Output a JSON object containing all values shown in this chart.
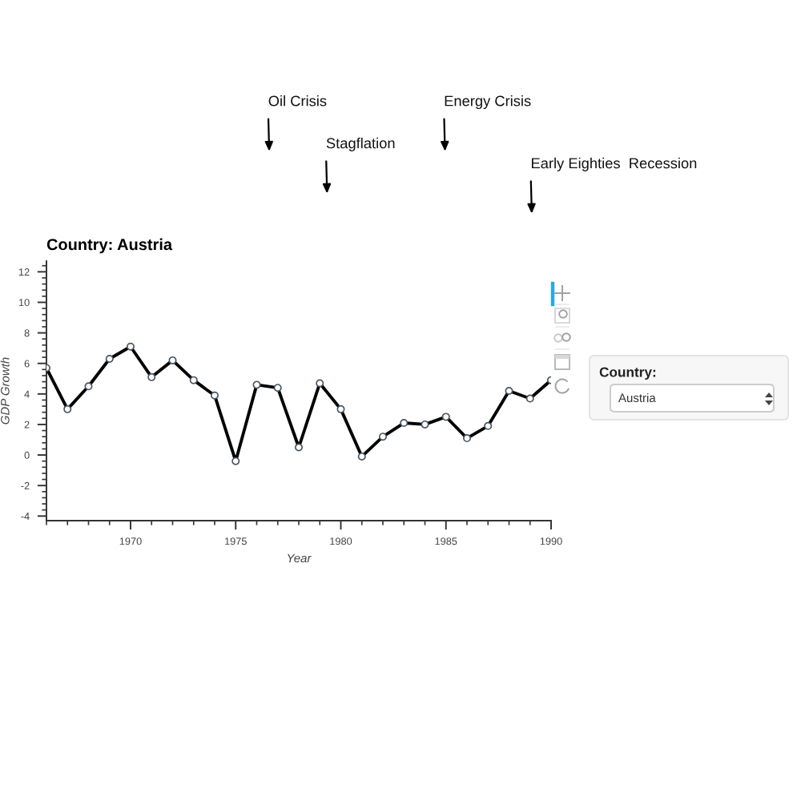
{
  "chart_data": {
    "type": "line",
    "title": "Country: Austria",
    "xlabel": "Year",
    "ylabel": "GDP Growth",
    "x": [
      1966,
      1967,
      1968,
      1969,
      1970,
      1971,
      1972,
      1973,
      1974,
      1975,
      1976,
      1977,
      1978,
      1979,
      1980,
      1981,
      1982,
      1983,
      1984,
      1985,
      1986,
      1987,
      1988,
      1989,
      1990
    ],
    "series": [
      {
        "color": "#000000",
        "values": [
          5.7,
          3.0,
          4.5,
          6.3,
          7.1,
          5.1,
          6.2,
          4.9,
          3.9,
          -0.4,
          4.6,
          4.4,
          0.5,
          4.7,
          3.0,
          -0.1,
          1.2,
          2.1,
          2.0,
          2.5,
          1.1,
          1.9,
          4.2,
          3.7,
          4.9
        ]
      }
    ],
    "xlim": [
      1966,
      1990
    ],
    "ylim": [
      -4.3,
      12.7
    ],
    "xticks": [
      1970,
      1975,
      1980,
      1985,
      1990
    ],
    "yticks": [
      -4,
      -2,
      0,
      2,
      4,
      6,
      8,
      10,
      12
    ],
    "marker": "circle",
    "line_style": "solid",
    "grid": false,
    "annotations": [
      "Oil Crisis",
      "Stagflation",
      "Energy Crisis",
      "Early Eighties  Recession",
      "Country:",
      "Austria"
    ]
  }
}
